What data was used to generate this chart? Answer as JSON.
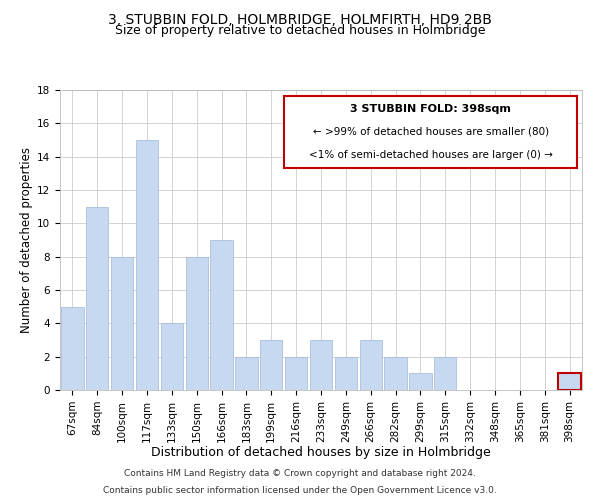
{
  "title": "3, STUBBIN FOLD, HOLMBRIDGE, HOLMFIRTH, HD9 2BB",
  "subtitle": "Size of property relative to detached houses in Holmbridge",
  "xlabel": "Distribution of detached houses by size in Holmbridge",
  "ylabel": "Number of detached properties",
  "bar_labels": [
    "67sqm",
    "84sqm",
    "100sqm",
    "117sqm",
    "133sqm",
    "150sqm",
    "166sqm",
    "183sqm",
    "199sqm",
    "216sqm",
    "233sqm",
    "249sqm",
    "266sqm",
    "282sqm",
    "299sqm",
    "315sqm",
    "332sqm",
    "348sqm",
    "365sqm",
    "381sqm",
    "398sqm"
  ],
  "bar_values": [
    5,
    11,
    8,
    15,
    4,
    8,
    9,
    2,
    3,
    2,
    3,
    2,
    3,
    2,
    1,
    2,
    0,
    0,
    0,
    0,
    1
  ],
  "bar_color": "#c6d9f0",
  "bar_edge_color": "#a0b8d8",
  "highlight_bar_index": 20,
  "highlight_bar_edge_color": "#c00000",
  "annotation_box_edge_color": "#c00000",
  "annotation_title": "3 STUBBIN FOLD: 398sqm",
  "annotation_line1": "← >99% of detached houses are smaller (80)",
  "annotation_line2": "<1% of semi-detached houses are larger (0) →",
  "ylim": [
    0,
    18
  ],
  "yticks": [
    0,
    2,
    4,
    6,
    8,
    10,
    12,
    14,
    16,
    18
  ],
  "footer_line1": "Contains HM Land Registry data © Crown copyright and database right 2024.",
  "footer_line2": "Contains public sector information licensed under the Open Government Licence v3.0.",
  "title_fontsize": 10,
  "subtitle_fontsize": 9,
  "xlabel_fontsize": 9,
  "ylabel_fontsize": 8.5,
  "tick_fontsize": 7.5,
  "footer_fontsize": 6.5,
  "annotation_title_fontsize": 8,
  "annotation_text_fontsize": 7.5,
  "background_color": "#ffffff",
  "grid_color": "#cccccc"
}
